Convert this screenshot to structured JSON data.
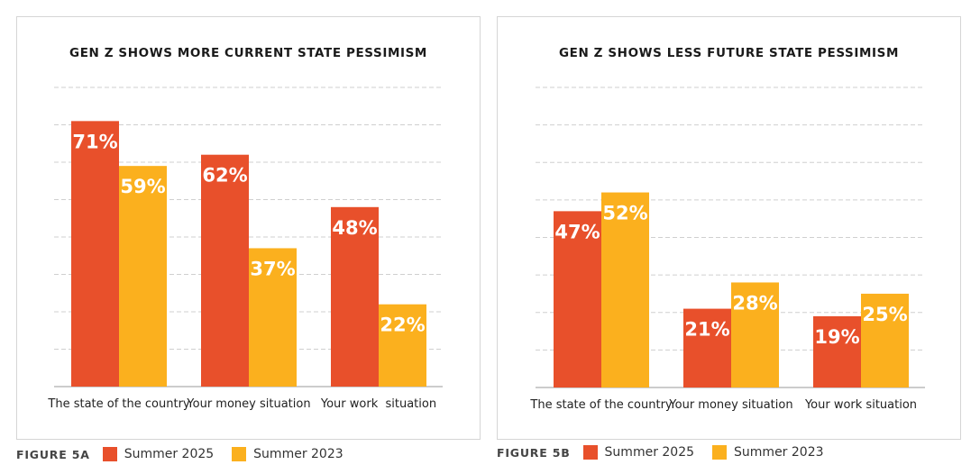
{
  "colors": {
    "summer_2025": "#e8502b",
    "summer_2023": "#fbb01e",
    "grid": "#cfcfcf",
    "axis": "#999999",
    "label": "#ffffff",
    "text": "#222222"
  },
  "figures": [
    {
      "label": "FIGURE 5A",
      "legend": [
        "Summer 2025",
        "Summer 2023"
      ]
    },
    {
      "label": "FIGURE 5B",
      "legend": [
        "Summer 2025",
        "Summer 2023"
      ]
    }
  ],
  "chart_data": [
    {
      "type": "bar",
      "title": "GEN Z SHOWS MORE CURRENT STATE PESSIMISM",
      "categories": [
        "The state of the country",
        "Your money situation",
        "Your work  situation"
      ],
      "series": [
        {
          "name": "Summer 2025",
          "values": [
            71,
            62,
            48
          ],
          "labels": [
            "71%",
            "62%",
            "48%"
          ]
        },
        {
          "name": "Summer 2023",
          "values": [
            59,
            37,
            22
          ],
          "labels": [
            "59%",
            "37%",
            "22%"
          ]
        }
      ],
      "ylim": [
        0,
        80
      ],
      "grid": true,
      "legend": "bottom"
    },
    {
      "type": "bar",
      "title": "GEN Z SHOWS LESS FUTURE STATE PESSIMISM",
      "categories": [
        "The state of the country",
        "Your money situation",
        "Your work situation"
      ],
      "series": [
        {
          "name": "Summer 2025",
          "values": [
            47,
            21,
            19
          ],
          "labels": [
            "47%",
            "21%",
            "19%"
          ]
        },
        {
          "name": "Summer 2023",
          "values": [
            52,
            28,
            25
          ],
          "labels": [
            "52%",
            "28%",
            "25%"
          ]
        }
      ],
      "ylim": [
        0,
        80
      ],
      "grid": true,
      "legend": "bottom"
    }
  ]
}
